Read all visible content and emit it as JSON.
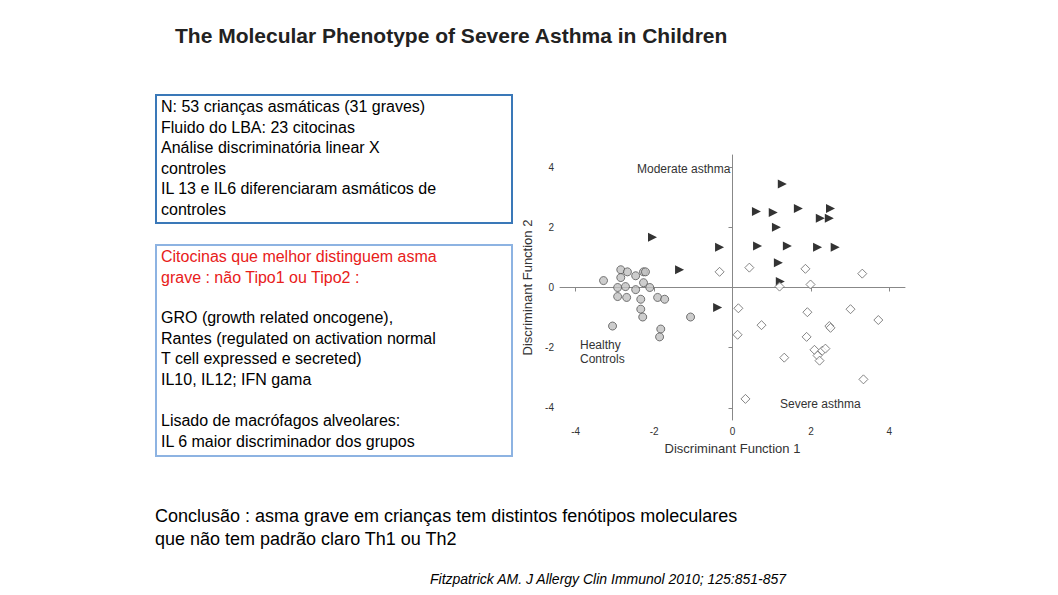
{
  "slide": {
    "title": "The Molecular Phenotype of Severe Asthma in Children",
    "box1_lines": [
      "N: 53 crianças asmáticas  (31 graves)",
      "Fluido do LBA: 23 citocinas",
      "Análise discriminatória linear X",
      "controles",
      "IL 13 e IL6 diferenciaram asmáticos de",
      "controles"
    ],
    "box2_red_lines": [
      "Citocinas que melhor distinguem asma",
      "grave : não Tipo1 ou Tipo2 :"
    ],
    "box2_lines": [
      "GRO (growth related oncogene),",
      "Rantes (regulated on activation normal",
      "T cell expressed e secreted)",
      "IL10, IL12; IFN gama"
    ],
    "box2_footer_lines": [
      "Lisado de macrófagos alveolares:",
      "IL 6 maior discriminador dos grupos"
    ],
    "conclusion_lines": [
      "Conclusão : asma grave em crianças tem distintos fenótipos moleculares",
      "que não tem padrão claro Th1 ou Th2"
    ],
    "citation": "Fitzpatrick AM. J Allergy Clin Immunol 2010; 125:851-857"
  },
  "chart_data": {
    "type": "scatter",
    "x_label": "Discriminant Function 1",
    "y_label": "Discriminant Function 2",
    "xlim": [
      -4.4,
      4.4
    ],
    "xticks": [
      -4,
      -2,
      0,
      2,
      4
    ],
    "ylim": [
      -4.4,
      4.4
    ],
    "yticks": [
      -4,
      -2,
      0,
      2,
      4
    ],
    "grid": false,
    "series": [
      {
        "name": "Moderate asthma",
        "color": "#000000",
        "marker": "triangle",
        "x": [
          1.27,
          0.61,
          1.04,
          1.68,
          2.5,
          2.24,
          2.47,
          1.12,
          -2.04,
          -0.33,
          0.64,
          1.4,
          2.17,
          2.62,
          -1.35,
          1.17,
          1.22,
          -0.38
        ],
        "y": [
          3.44,
          2.52,
          2.49,
          2.62,
          2.62,
          2.3,
          2.3,
          2.0,
          1.67,
          1.34,
          1.38,
          1.38,
          1.34,
          1.34,
          0.59,
          0.82,
          0.2,
          -0.66
        ]
      },
      {
        "name": "Healthy Controls",
        "color": "#c0c0c0",
        "marker": "circle",
        "x": [
          -3.29,
          -2.85,
          -2.85,
          -2.68,
          -2.47,
          -2.27,
          -2.27,
          -2.93,
          -2.73,
          -2.47,
          -2.11,
          -2.93,
          -2.7,
          -2.34,
          -1.91,
          -1.73,
          -2.34,
          -2.29,
          -1.83,
          -1.86,
          -1.07,
          -3.06,
          -2.22
        ],
        "y": [
          0.23,
          0.59,
          0.33,
          0.52,
          0.39,
          0.52,
          0.16,
          0.0,
          0.03,
          -0.07,
          0.0,
          -0.3,
          -0.33,
          -0.39,
          -0.33,
          -0.39,
          -0.72,
          -0.98,
          -1.38,
          -1.64,
          -0.98,
          -1.28,
          0.52
        ]
      },
      {
        "name": "Severe asthma",
        "color": "#ffffff",
        "marker": "diamond",
        "x": [
          -0.33,
          0.43,
          1.86,
          3.31,
          1.2,
          0.15,
          1.91,
          3.01,
          3.72,
          0.74,
          2.47,
          2.5,
          0.13,
          1.89,
          1.32,
          2.09,
          2.29,
          2.17,
          2.22,
          2.37,
          3.34,
          0.33,
          1.99
        ],
        "y": [
          0.52,
          0.66,
          0.62,
          0.46,
          0.03,
          -0.69,
          -0.82,
          -0.72,
          -1.08,
          -1.25,
          -1.28,
          -1.34,
          -1.57,
          -1.64,
          -2.33,
          -2.07,
          -2.1,
          -2.26,
          -2.43,
          -2.03,
          -3.05,
          -3.7,
          0.1
        ]
      }
    ]
  }
}
